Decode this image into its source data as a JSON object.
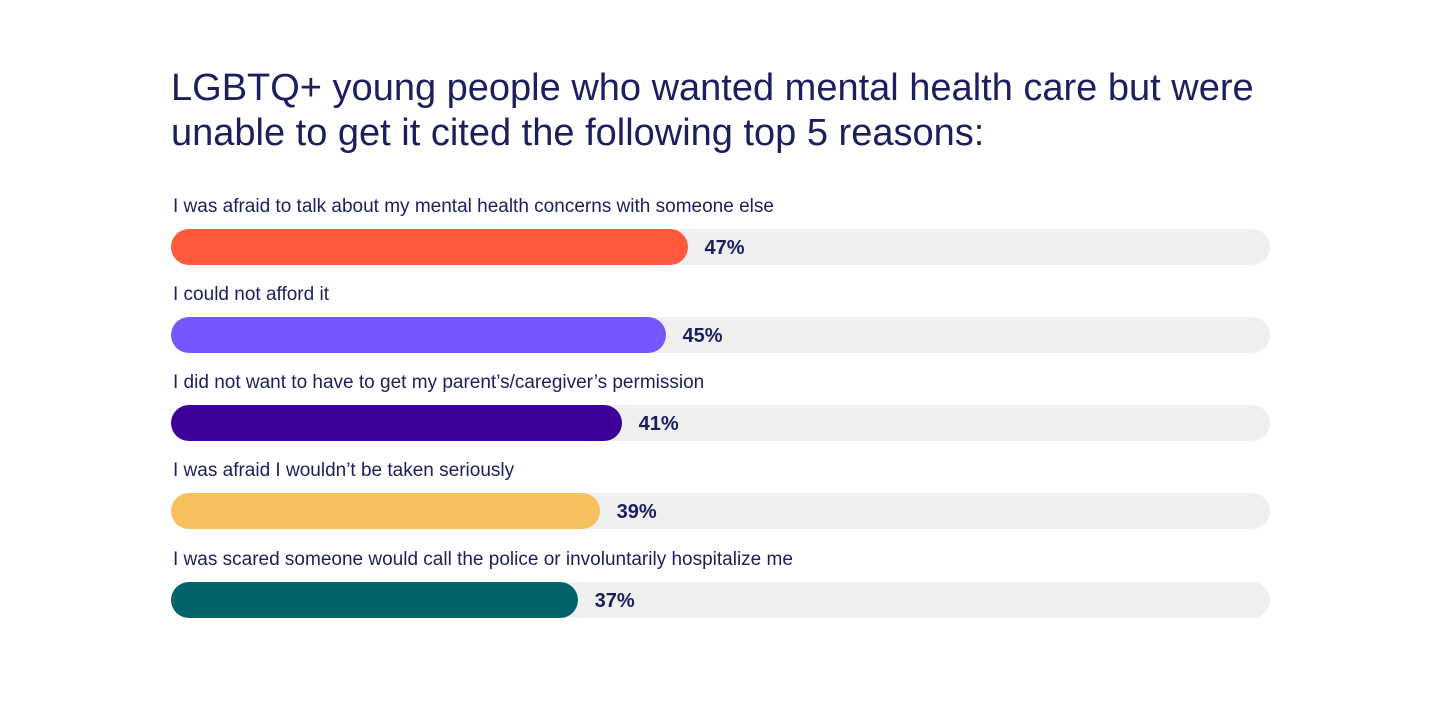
{
  "chart_data": {
    "type": "bar",
    "orientation": "horizontal",
    "title": "LGBTQ+ young people who wanted mental health care but were unable to get it cited the following top 5 reasons:",
    "xlim": [
      0,
      100
    ],
    "grid": false,
    "categories": [
      "I was afraid to talk about my mental health concerns with someone else",
      "I could not afford it",
      "I did not want to have to get my parent’s/caregiver’s permission",
      "I was afraid I wouldn’t be taken seriously",
      "I was scared someone would call the police or involuntarily hospitalize me"
    ],
    "values": [
      47,
      45,
      41,
      39,
      37
    ],
    "value_labels": [
      "47%",
      "45%",
      "41%",
      "39%",
      "37%"
    ],
    "colors": [
      "#ff5a3c",
      "#7657ff",
      "#3d0099",
      "#f8c05c",
      "#03636b"
    ],
    "track_color": "#efefef",
    "text_color": "#1b1f5e"
  }
}
